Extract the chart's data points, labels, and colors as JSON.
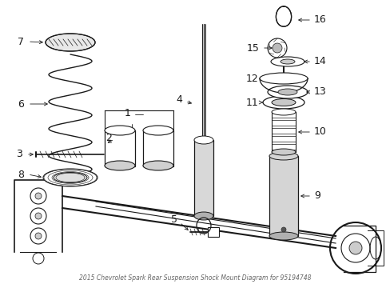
{
  "title": "2015 Chevrolet Spark Rear Suspension Shock Mount Diagram for 95194748",
  "bg_color": "#ffffff",
  "line_color": "#1a1a1a",
  "figsize": [
    4.89,
    3.6
  ],
  "dpi": 100,
  "font_size": 9
}
